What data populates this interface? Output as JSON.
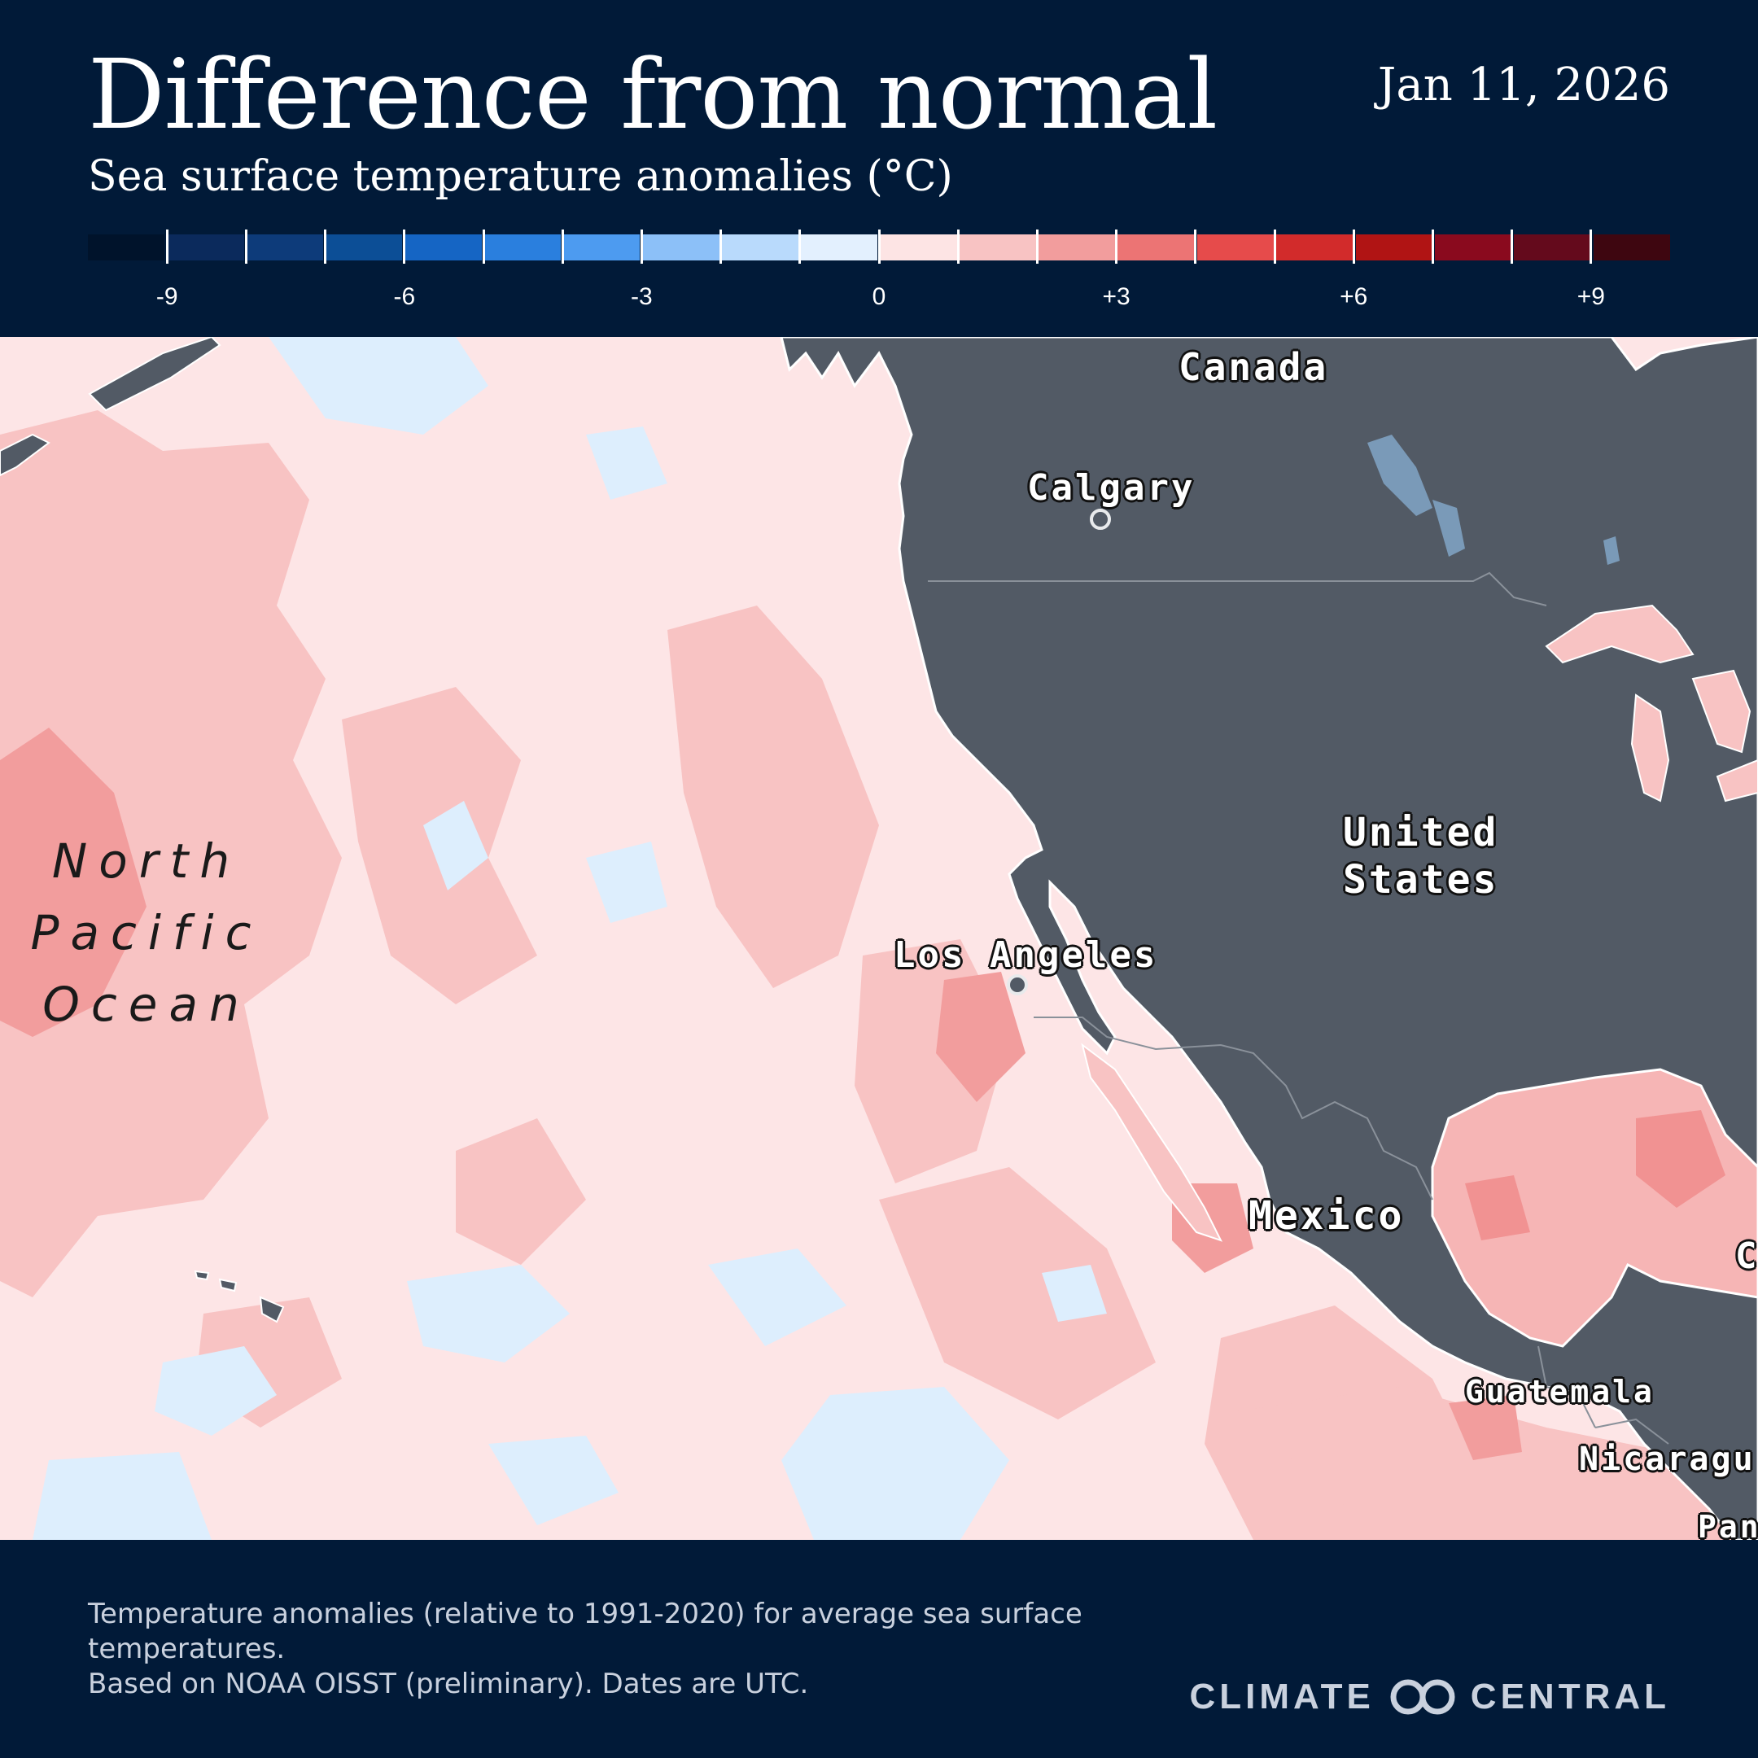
{
  "header": {
    "title": "Difference from normal",
    "subtitle": "Sea surface temperature anomalies (°C)",
    "date": "Jan 11, 2026"
  },
  "legend": {
    "colors": [
      "#00132b",
      "#0b2a5c",
      "#0d3b7a",
      "#0c4e96",
      "#1565c4",
      "#2a7fde",
      "#4d9bf0",
      "#8cc0f8",
      "#b9dafc",
      "#e3f0fe",
      "#fde4e4",
      "#f8c3c3",
      "#f29d9d",
      "#ec7474",
      "#e64b4b",
      "#d22b2b",
      "#b01414",
      "#8a0a1e",
      "#640a1c",
      "#3e0610"
    ],
    "ticks": [
      {
        "value": -9,
        "label": "-9"
      },
      {
        "value": -8,
        "label": ""
      },
      {
        "value": -7,
        "label": ""
      },
      {
        "value": -6,
        "label": "-6"
      },
      {
        "value": -5,
        "label": ""
      },
      {
        "value": -4,
        "label": ""
      },
      {
        "value": -3,
        "label": "-3"
      },
      {
        "value": -2,
        "label": ""
      },
      {
        "value": -1,
        "label": ""
      },
      {
        "value": 0,
        "label": "0"
      },
      {
        "value": 1,
        "label": ""
      },
      {
        "value": 2,
        "label": ""
      },
      {
        "value": 3,
        "label": "+3"
      },
      {
        "value": 4,
        "label": ""
      },
      {
        "value": 5,
        "label": ""
      },
      {
        "value": 6,
        "label": "+6"
      },
      {
        "value": 7,
        "label": ""
      },
      {
        "value": 8,
        "label": ""
      },
      {
        "value": 9,
        "label": "+9"
      }
    ],
    "range": [
      -10,
      10
    ]
  },
  "map": {
    "land_color": "#525a65",
    "ocean_base_color": "#fde5e6",
    "place_labels": {
      "canada": "Canada",
      "calgary": "Calgary",
      "united_states": "United States",
      "los_angeles": "Los Angeles",
      "mexico": "Mexico",
      "guatemala": "Guatemala",
      "nicaragua": "Nicaragu",
      "panama": "Pan",
      "cuba": "C"
    },
    "ocean_label": "North Pacific Ocean"
  },
  "footer": {
    "note_line1": "Temperature anomalies (relative to 1991-2020) for average sea surface temperatures.",
    "note_line2": "Based on NOAA OISST (preliminary). Dates are UTC.",
    "logo_left": "CLIMATE",
    "logo_right": "CENTRAL"
  }
}
